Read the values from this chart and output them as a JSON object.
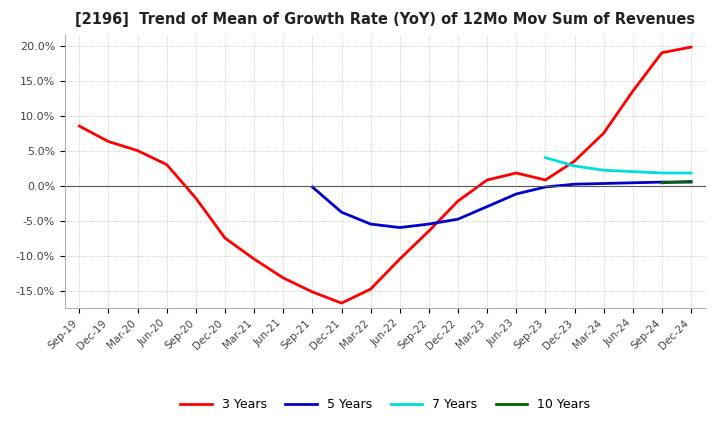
{
  "title": "[2196]  Trend of Mean of Growth Rate (YoY) of 12Mo Mov Sum of Revenues",
  "ylim": [
    -0.175,
    0.215
  ],
  "yticks": [
    -0.15,
    -0.1,
    -0.05,
    0.0,
    0.05,
    0.1,
    0.15,
    0.2
  ],
  "ytick_labels": [
    "-15.0%",
    "-10.0%",
    "-5.0%",
    "0.0%",
    "5.0%",
    "10.0%",
    "15.0%",
    "20.0%"
  ],
  "x_labels": [
    "Sep-19",
    "Dec-19",
    "Mar-20",
    "Jun-20",
    "Sep-20",
    "Dec-20",
    "Mar-21",
    "Jun-21",
    "Sep-21",
    "Dec-21",
    "Mar-22",
    "Jun-22",
    "Sep-22",
    "Dec-22",
    "Mar-23",
    "Jun-23",
    "Sep-23",
    "Dec-23",
    "Mar-24",
    "Jun-24",
    "Sep-24",
    "Dec-24"
  ],
  "line_3yr": [
    0.085,
    0.063,
    0.05,
    0.03,
    -0.018,
    -0.075,
    -0.105,
    -0.132,
    -0.152,
    -0.168,
    -0.148,
    -0.105,
    -0.065,
    -0.022,
    0.008,
    0.018,
    0.008,
    0.035,
    0.075,
    0.135,
    0.19,
    0.198
  ],
  "line_5yr": [
    null,
    null,
    null,
    null,
    null,
    null,
    null,
    null,
    -0.002,
    -0.038,
    -0.055,
    -0.06,
    -0.055,
    -0.048,
    -0.03,
    -0.012,
    -0.002,
    0.002,
    0.003,
    0.004,
    0.005,
    0.005
  ],
  "line_7yr": [
    null,
    null,
    null,
    null,
    null,
    null,
    null,
    null,
    null,
    null,
    null,
    null,
    null,
    null,
    null,
    null,
    0.04,
    0.028,
    0.022,
    0.02,
    0.018,
    0.018
  ],
  "line_10yr": [
    null,
    null,
    null,
    null,
    null,
    null,
    null,
    null,
    null,
    null,
    null,
    null,
    null,
    null,
    null,
    null,
    null,
    null,
    null,
    null,
    0.004,
    0.006
  ],
  "color_3yr": "#FF0000",
  "color_5yr": "#0000CC",
  "color_7yr": "#00DDDD",
  "color_10yr": "#006600",
  "legend_labels": [
    "3 Years",
    "5 Years",
    "7 Years",
    "10 Years"
  ],
  "background_color": "#FFFFFF",
  "grid_color": "#AAAAAA",
  "zero_line_color": "#555555"
}
